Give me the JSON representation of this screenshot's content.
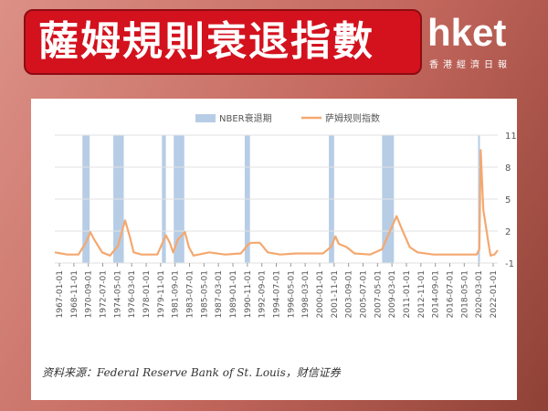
{
  "header": {
    "title": "薩姆規則衰退指數",
    "logo": "hket",
    "logo_sub": "香港經濟日報"
  },
  "chart_data": {
    "type": "line",
    "source": "资料来源：Federal Reserve Bank of St. Louis，财信证券",
    "xlim": [
      "1966-06-01",
      "2022-08-01"
    ],
    "xticks": [
      "1967-01-01",
      "1968-11-01",
      "1970-09-01",
      "1972-07-01",
      "1974-05-01",
      "1976-03-01",
      "1978-01-01",
      "1979-11-01",
      "1981-09-01",
      "1983-07-01",
      "1985-05-01",
      "1987-03-01",
      "1989-01-01",
      "1990-11-01",
      "1992-09-01",
      "1994-07-01",
      "1996-05-01",
      "1998-03-01",
      "2000-01-01",
      "2001-11-01",
      "2003-09-01",
      "2005-07-01",
      "2007-05-01",
      "2009-03-01",
      "2011-01-01",
      "2012-11-01",
      "2014-09-01",
      "2016-07-01",
      "2018-05-01",
      "2020-03-01",
      "2022-01-01"
    ],
    "ylim": [
      -1,
      11
    ],
    "yticks": [
      11,
      8,
      5,
      2,
      -1
    ],
    "grid": true,
    "series": [
      {
        "name": "NBER衰退期",
        "color": "#b7cde6",
        "ranges": [
          [
            "1969-12-01",
            "1970-11-01"
          ],
          [
            "1973-11-01",
            "1975-03-01"
          ],
          [
            "1980-01-01",
            "1980-07-01"
          ],
          [
            "1981-07-01",
            "1982-11-01"
          ],
          [
            "1990-07-01",
            "1991-03-01"
          ],
          [
            "2001-03-01",
            "2001-11-01"
          ],
          [
            "2007-12-01",
            "2009-06-01"
          ],
          [
            "2020-02-01",
            "2020-04-01"
          ]
        ]
      },
      {
        "name": "萨姆规则指数",
        "color": "#f4a870",
        "x": [
          "1966-06-01",
          "1968-01-01",
          "1969-06-01",
          "1970-06-01",
          "1970-12-01",
          "1971-06-01",
          "1972-06-01",
          "1973-06-01",
          "1974-06-01",
          "1975-05-01",
          "1975-12-01",
          "1976-06-01",
          "1977-06-01",
          "1979-06-01",
          "1980-07-01",
          "1981-01-01",
          "1981-06-01",
          "1982-01-01",
          "1982-12-01",
          "1983-06-01",
          "1984-01-01",
          "1986-01-01",
          "1988-01-01",
          "1990-01-01",
          "1991-01-01",
          "1991-06-01",
          "1992-06-01",
          "1993-06-01",
          "1995-01-01",
          "1997-01-01",
          "2000-06-01",
          "2001-06-01",
          "2002-01-01",
          "2002-06-01",
          "2003-06-01",
          "2004-06-01",
          "2006-06-01",
          "2007-12-01",
          "2008-12-01",
          "2009-10-01",
          "2010-06-01",
          "2011-06-01",
          "2012-06-01",
          "2014-06-01",
          "2017-01-01",
          "2019-12-01",
          "2020-04-01",
          "2020-06-01",
          "2020-10-01",
          "2021-01-01",
          "2021-06-01",
          "2021-09-01",
          "2022-03-01",
          "2022-08-01"
        ],
        "values": [
          0.0,
          -0.2,
          -0.2,
          1.0,
          1.9,
          1.2,
          0.0,
          -0.3,
          0.6,
          3.0,
          1.5,
          0.0,
          -0.2,
          -0.2,
          1.6,
          0.9,
          0.0,
          1.2,
          1.9,
          0.5,
          -0.3,
          0.0,
          -0.2,
          -0.1,
          0.8,
          0.9,
          0.9,
          0.0,
          -0.2,
          -0.1,
          -0.1,
          0.5,
          1.5,
          0.8,
          0.5,
          -0.1,
          -0.2,
          0.3,
          2.0,
          3.4,
          2.2,
          0.5,
          0.0,
          -0.2,
          -0.2,
          -0.2,
          0.3,
          9.6,
          4.0,
          2.8,
          0.8,
          -0.3,
          -0.2,
          0.2
        ]
      }
    ]
  }
}
